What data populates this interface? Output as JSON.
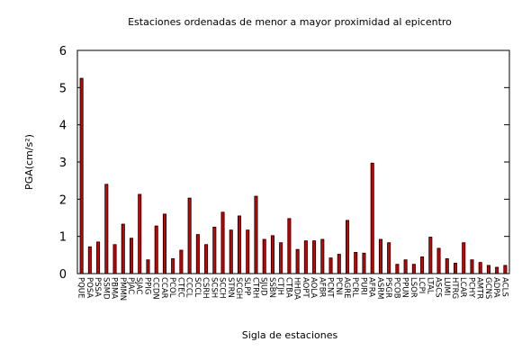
{
  "chart_data": {
    "type": "bar",
    "title": "Estaciones ordenadas de menor a mayor proximidad al epicentro",
    "x_label": "Sigla de estaciones",
    "y_label": "PGA(cm/s²)",
    "categories": [
      "PQUE",
      "POSA",
      "PSSA",
      "SSMD",
      "PBMA",
      "PMMN",
      "PJAC",
      "SJAC",
      "PPIG",
      "CCDN",
      "CCAR",
      "PCOL",
      "CTEC",
      "CCCL",
      "SCCL",
      "CSRH",
      "SCSH",
      "SCCH",
      "STRN",
      "SCGH",
      "SLPP",
      "CTRH",
      "SJUD",
      "SSBN",
      "CTJH",
      "CTBA",
      "HHDA",
      "AOPT",
      "AOLA",
      "AFBR",
      "PCNT",
      "PCNI",
      "AGRE",
      "PCRL",
      "PURI",
      "AFRA",
      "ASRM",
      "PSGR",
      "PCOB",
      "PPUN",
      "LSOR",
      "LCPI",
      "LTAL",
      "ASCS",
      "LUMI",
      "HTRG",
      "LCAR",
      "PCHY",
      "AMTR",
      "GCNS",
      "ADPA",
      "ACLS"
    ],
    "values": [
      5.25,
      0.72,
      0.85,
      2.4,
      0.78,
      1.33,
      0.95,
      2.13,
      0.37,
      1.28,
      1.6,
      0.4,
      0.63,
      2.03,
      1.05,
      0.78,
      1.25,
      1.65,
      1.17,
      1.55,
      1.17,
      2.08,
      0.92,
      1.02,
      0.83,
      1.48,
      0.65,
      0.88,
      0.88,
      0.92,
      0.42,
      0.52,
      1.43,
      0.57,
      0.55,
      2.97,
      0.92,
      0.83,
      0.25,
      0.37,
      0.25,
      0.45,
      0.98,
      0.68,
      0.4,
      0.28,
      0.83,
      0.37,
      0.3,
      0.22,
      0.17,
      0.22
    ],
    "color": "#cc0000",
    "ylim": [
      0,
      6
    ],
    "yticks": [
      0,
      1,
      2,
      3,
      4,
      5,
      6
    ],
    "grid": false
  }
}
